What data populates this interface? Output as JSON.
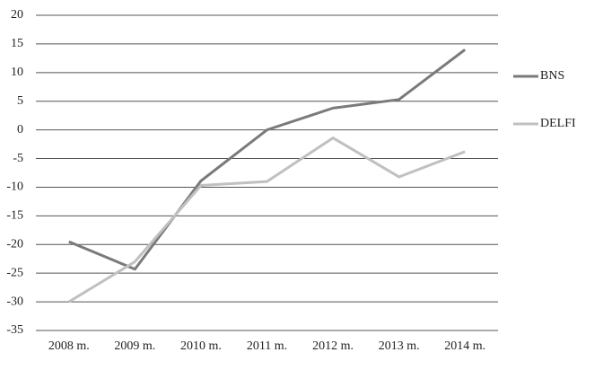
{
  "chart_data": {
    "type": "line",
    "categories": [
      "2008 m.",
      "2009 m.",
      "2010 m.",
      "2011 m.",
      "2012 m.",
      "2013 m.",
      "2014 m."
    ],
    "series": [
      {
        "name": "BNS",
        "color": "#7a7a7a",
        "values": [
          -19.5,
          -24.3,
          -8.9,
          0,
          3.8,
          5.3,
          14
        ]
      },
      {
        "name": "DELFI",
        "color": "#c0c0c0",
        "values": [
          -30,
          -23,
          -9.7,
          -9,
          -1.4,
          -8.2,
          -3.8
        ]
      }
    ],
    "ylim": [
      -35,
      20
    ],
    "yticks": [
      -35,
      -30,
      -25,
      -20,
      -15,
      -10,
      -5,
      0,
      5,
      10,
      15,
      20
    ],
    "grid": true,
    "legend": "right"
  }
}
